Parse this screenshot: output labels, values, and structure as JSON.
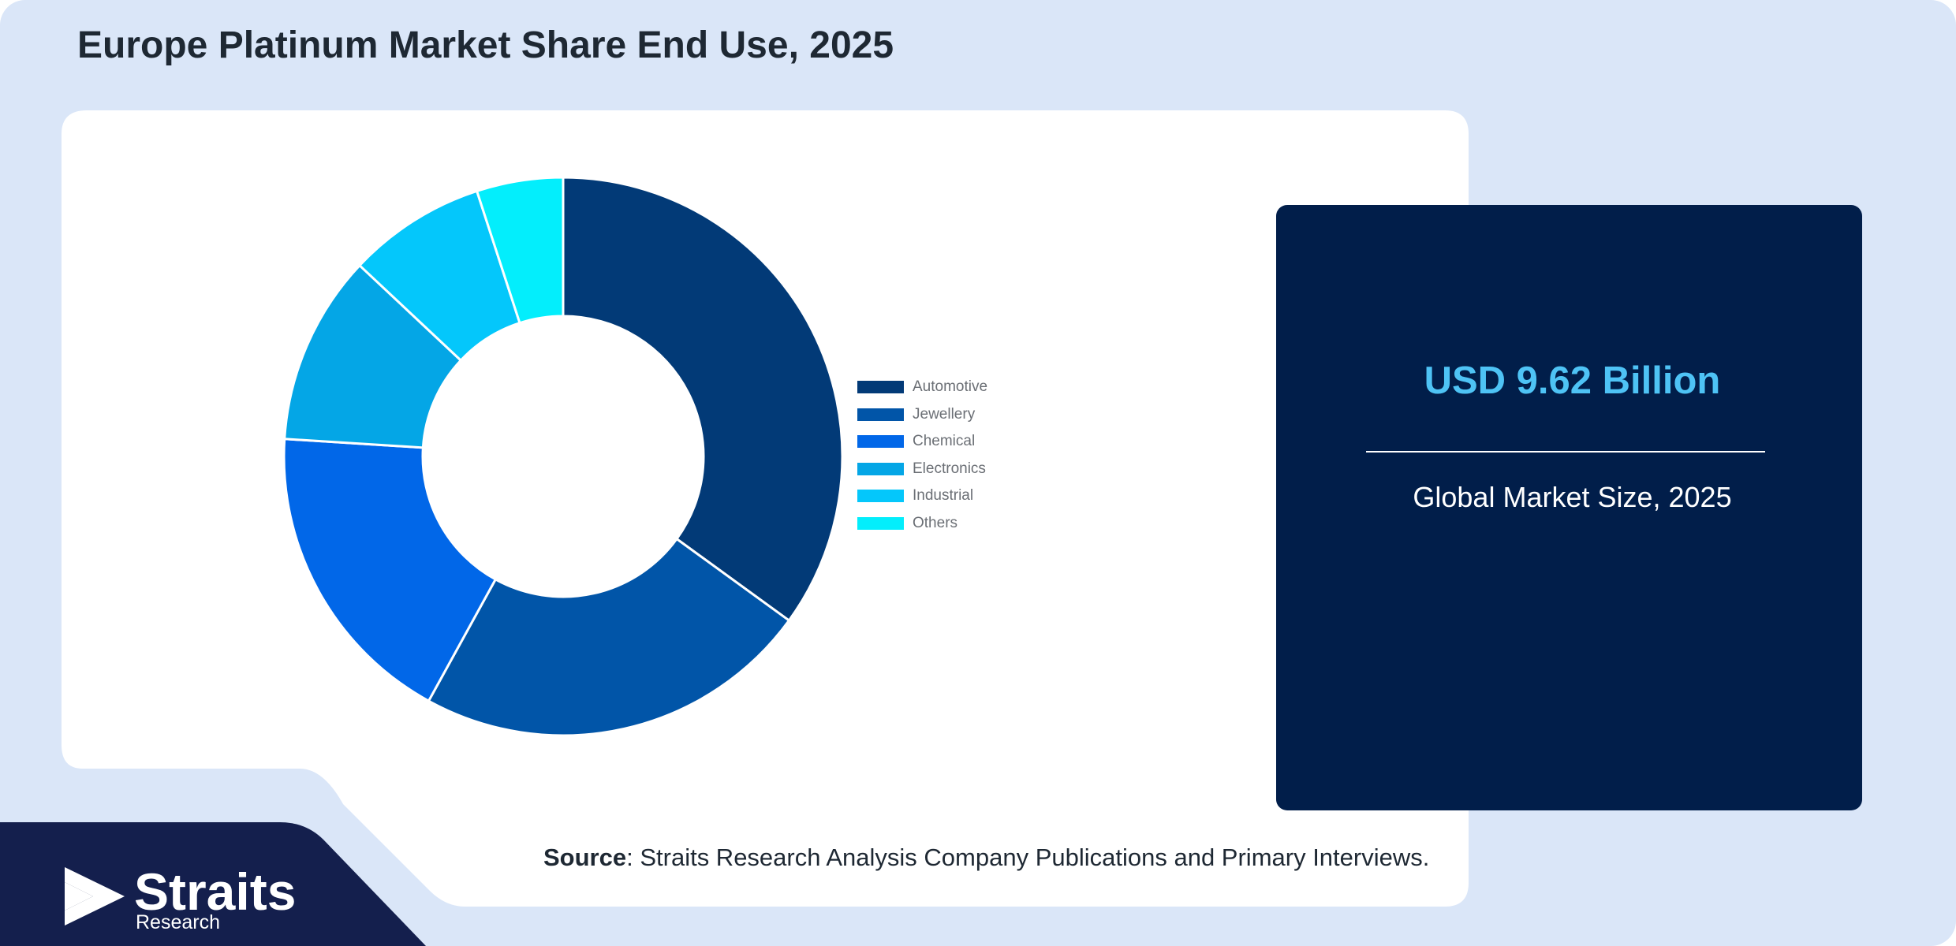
{
  "page": {
    "title": "Europe Platinum Market Share End Use, 2025"
  },
  "chart_data": {
    "type": "pie",
    "donut": true,
    "categories": [
      "Automotive",
      "Jewellery",
      "Chemical",
      "Electronics",
      "Industrial",
      "Others"
    ],
    "values": [
      35,
      23,
      18,
      11,
      8,
      5
    ],
    "colors": [
      "#023a77",
      "#0155a8",
      "#0167e8",
      "#04a6e6",
      "#04c7fb",
      "#03eefc"
    ],
    "legend": "right"
  },
  "kpi": {
    "value": "USD 9.62 Billion",
    "caption": "Global Market Size, 2025"
  },
  "source": {
    "label": "Source",
    "text": ": Straits Research Analysis Company Publications and Primary Interviews."
  },
  "brand": {
    "name": "Straits",
    "subtitle": "Research"
  },
  "colors": {
    "background": "#dae6f8",
    "panel": "#ffffff",
    "kpi_card": "#011e4a",
    "kpi_accent": "#4ec3f5",
    "brand_navy": "#141f4d"
  }
}
